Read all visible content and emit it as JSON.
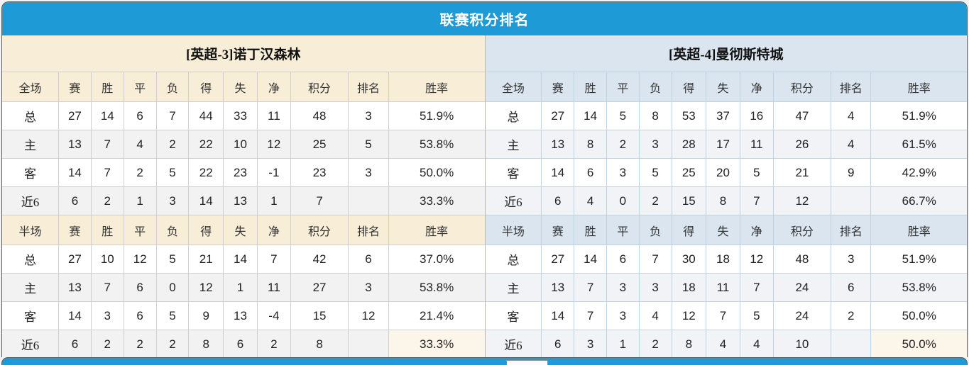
{
  "title": "联赛积分排名",
  "colors": {
    "accent_blue": "#1E9AD6",
    "left_header_bg": "#F8EED8",
    "right_header_bg": "#DAE5EF",
    "value_red": "#FF3300",
    "rank_blue": "#3A87DD",
    "home_label_red": "#E03A3A",
    "away_label_blue": "#6B6BD6"
  },
  "left": {
    "team_title": "[英超-3]诺丁汉森林",
    "full_header": [
      "全场",
      "赛",
      "胜",
      "平",
      "负",
      "得",
      "失",
      "净",
      "积分",
      "排名",
      "胜率"
    ],
    "half_header": [
      "半场",
      "赛",
      "胜",
      "平",
      "负",
      "得",
      "失",
      "净",
      "积分",
      "排名",
      "胜率"
    ],
    "full_rows": [
      {
        "label": "总",
        "cells": [
          "27",
          "14",
          "6",
          "7",
          "44",
          "33",
          "11"
        ],
        "points": "48",
        "rank": "3",
        "rate": "51.9%"
      },
      {
        "label": "主",
        "cells": [
          "13",
          "7",
          "4",
          "2",
          "22",
          "10",
          "12"
        ],
        "points": "25",
        "rank": "5",
        "rate": "53.8%"
      },
      {
        "label": "客",
        "cells": [
          "14",
          "7",
          "2",
          "5",
          "22",
          "23",
          "-1"
        ],
        "points": "23",
        "rank": "3",
        "rate": "50.0%"
      },
      {
        "label": "近6",
        "cells": [
          "6",
          "2",
          "1",
          "3",
          "14",
          "13",
          "1"
        ],
        "points": "7",
        "rank": "",
        "rate": "33.3%"
      }
    ],
    "half_rows": [
      {
        "label": "总",
        "cells": [
          "27",
          "10",
          "12",
          "5",
          "21",
          "14",
          "7"
        ],
        "points": "42",
        "rank": "6",
        "rate": "37.0%"
      },
      {
        "label": "主",
        "cells": [
          "13",
          "7",
          "6",
          "0",
          "12",
          "1",
          "11"
        ],
        "points": "27",
        "rank": "3",
        "rate": "53.8%"
      },
      {
        "label": "客",
        "cells": [
          "14",
          "3",
          "6",
          "5",
          "9",
          "13",
          "-4"
        ],
        "points": "15",
        "rank": "12",
        "rate": "21.4%"
      },
      {
        "label": "近6",
        "cells": [
          "6",
          "2",
          "2",
          "2",
          "8",
          "6",
          "2"
        ],
        "points": "8",
        "rank": "",
        "rate": "33.3%"
      }
    ]
  },
  "right": {
    "team_title": "[英超-4]曼彻斯特城",
    "full_header": [
      "全场",
      "赛",
      "胜",
      "平",
      "负",
      "得",
      "失",
      "净",
      "积分",
      "排名",
      "胜率"
    ],
    "half_header": [
      "半场",
      "赛",
      "胜",
      "平",
      "负",
      "得",
      "失",
      "净",
      "积分",
      "排名",
      "胜率"
    ],
    "full_rows": [
      {
        "label": "总",
        "cells": [
          "27",
          "14",
          "5",
          "8",
          "53",
          "37",
          "16"
        ],
        "points": "47",
        "rank": "4",
        "rate": "51.9%"
      },
      {
        "label": "主",
        "cells": [
          "13",
          "8",
          "2",
          "3",
          "28",
          "17",
          "11"
        ],
        "points": "26",
        "rank": "4",
        "rate": "61.5%"
      },
      {
        "label": "客",
        "cells": [
          "14",
          "6",
          "3",
          "5",
          "25",
          "20",
          "5"
        ],
        "points": "21",
        "rank": "9",
        "rate": "42.9%"
      },
      {
        "label": "近6",
        "cells": [
          "6",
          "4",
          "0",
          "2",
          "15",
          "8",
          "7"
        ],
        "points": "12",
        "rank": "",
        "rate": "66.7%"
      }
    ],
    "half_rows": [
      {
        "label": "总",
        "cells": [
          "27",
          "14",
          "6",
          "7",
          "30",
          "18",
          "12"
        ],
        "points": "48",
        "rank": "3",
        "rate": "51.9%"
      },
      {
        "label": "主",
        "cells": [
          "13",
          "7",
          "3",
          "3",
          "18",
          "11",
          "7"
        ],
        "points": "24",
        "rank": "6",
        "rate": "53.8%"
      },
      {
        "label": "客",
        "cells": [
          "14",
          "7",
          "3",
          "4",
          "12",
          "7",
          "5"
        ],
        "points": "24",
        "rank": "2",
        "rate": "50.0%"
      },
      {
        "label": "近6",
        "cells": [
          "6",
          "3",
          "1",
          "2",
          "8",
          "4",
          "4"
        ],
        "points": "10",
        "rank": "",
        "rate": "50.0%"
      }
    ]
  }
}
